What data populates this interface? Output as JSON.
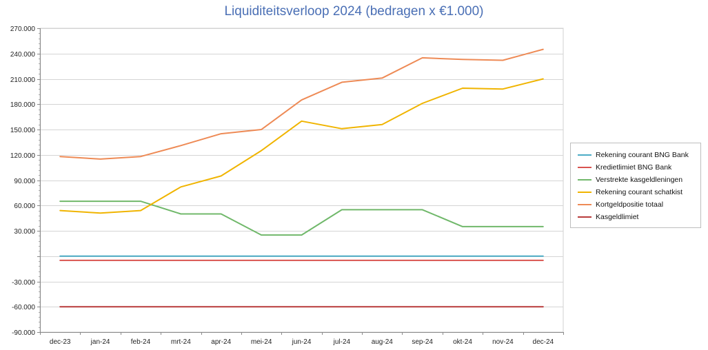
{
  "chart_data": {
    "type": "line",
    "title": "Liquiditeitsverloop 2024 (bedragen x €1.000)",
    "xlabel": "",
    "ylabel": "",
    "ylim": [
      -90000,
      270000
    ],
    "yticks": [
      270000,
      240000,
      210000,
      180000,
      150000,
      120000,
      90000,
      60000,
      30000,
      0,
      -30000,
      -60000,
      -90000
    ],
    "ytick_labels": [
      "270.000",
      "240.000",
      "210.000",
      "180.000",
      "150.000",
      "120.000",
      "90.000",
      "60.000",
      "30.000",
      "",
      "-30.000",
      "-60.000",
      "-90.000"
    ],
    "categories": [
      "dec-23",
      "jan-24",
      "feb-24",
      "mrt-24",
      "apr-24",
      "mei-24",
      "jun-24",
      "jul-24",
      "aug-24",
      "sep-24",
      "okt-24",
      "nov-24",
      "dec-24"
    ],
    "grid": true,
    "legend_position": "right",
    "series": [
      {
        "name": "Rekening courant BNG Bank",
        "color": "#4bacc6",
        "values": [
          0,
          0,
          0,
          0,
          0,
          0,
          0,
          0,
          0,
          0,
          0,
          0,
          0
        ]
      },
      {
        "name": "Kredietlimiet BNG Bank",
        "color": "#d9534f",
        "values": [
          -5000,
          -5000,
          -5000,
          -5000,
          -5000,
          -5000,
          -5000,
          -5000,
          -5000,
          -5000,
          -5000,
          -5000,
          -5000
        ]
      },
      {
        "name": "Verstrekte kasgeldleningen",
        "color": "#70b86a",
        "values": [
          65000,
          65000,
          65000,
          50000,
          50000,
          25000,
          25000,
          55000,
          55000,
          55000,
          35000,
          35000,
          35000
        ]
      },
      {
        "name": "Rekening courant schatkist",
        "color": "#f0b400",
        "values": [
          54000,
          51000,
          54000,
          82000,
          95000,
          125000,
          160000,
          151000,
          156000,
          181000,
          199000,
          198000,
          210000
        ]
      },
      {
        "name": "Kortgeldpositie totaal",
        "color": "#ee8a55",
        "values": [
          118000,
          115000,
          118000,
          131000,
          145000,
          150000,
          185000,
          206000,
          211000,
          235000,
          233000,
          232000,
          245000
        ]
      },
      {
        "name": "Kasgeldlimiet",
        "color": "#b83a3a",
        "values": [
          -60000,
          -60000,
          -60000,
          -60000,
          -60000,
          -60000,
          -60000,
          -60000,
          -60000,
          -60000,
          -60000,
          -60000,
          -60000
        ]
      }
    ]
  }
}
